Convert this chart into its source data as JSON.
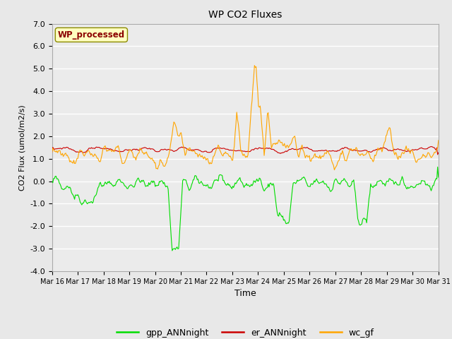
{
  "title": "WP CO2 Fluxes",
  "xlabel": "Time",
  "ylabel": "CO2 Flux (umol/m2/s)",
  "ylim": [
    -4.0,
    7.0
  ],
  "yticks": [
    -4.0,
    -3.0,
    -2.0,
    -1.0,
    0.0,
    1.0,
    2.0,
    3.0,
    4.0,
    5.0,
    6.0,
    7.0
  ],
  "annotation_text": "WP_processed",
  "annotation_color": "#8B0000",
  "annotation_bg": "#FFFFC0",
  "annotation_edge": "#8B8B00",
  "fig_bg": "#E8E8E8",
  "plot_bg": "#EBEBEB",
  "grid_color": "white",
  "line_green": "#00DD00",
  "line_red": "#CC0000",
  "line_orange": "#FFA500",
  "line_width": 0.8,
  "legend_labels": [
    "gpp_ANNnight",
    "er_ANNnight",
    "wc_gf"
  ],
  "legend_colors": [
    "#00DD00",
    "#CC0000",
    "#FFA500"
  ],
  "n_points": 480,
  "date_start": 16,
  "date_end": 31
}
